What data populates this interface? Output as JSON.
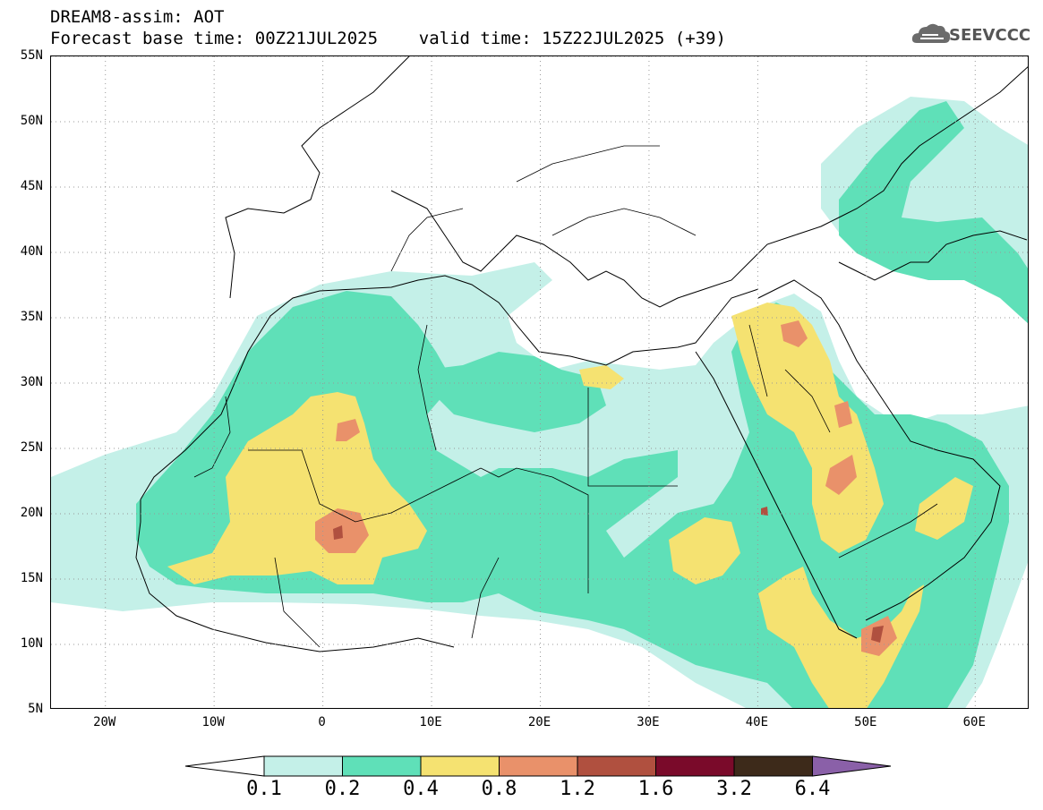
{
  "title": {
    "line1": "DREAM8-assim: AOT",
    "line2": "Forecast base time: 00Z21JUL2025    valid time: 15Z22JUL2025 (+39)"
  },
  "logo": {
    "text": "SEEVCCC",
    "icon": "cloud-logo-icon"
  },
  "map": {
    "lon_range": [
      -25,
      65
    ],
    "lat_range": [
      5,
      55
    ],
    "grid": "dotted",
    "lat_labels": [
      "55N",
      "50N",
      "45N",
      "40N",
      "35N",
      "30N",
      "25N",
      "20N",
      "15N",
      "10N",
      "5N"
    ],
    "lat_values": [
      55,
      50,
      45,
      40,
      35,
      30,
      25,
      20,
      15,
      10,
      5
    ],
    "lon_labels": [
      "20W",
      "10W",
      "0",
      "10E",
      "20E",
      "30E",
      "40E",
      "50E",
      "60E"
    ],
    "lon_values": [
      -20,
      -10,
      0,
      10,
      20,
      30,
      40,
      50,
      60
    ]
  },
  "colorbar": {
    "labels": [
      "0.1",
      "0.2",
      "0.4",
      "0.8",
      "1.2",
      "1.6",
      "3.2",
      "6.4"
    ],
    "colors": [
      "#c4f0e8",
      "#5fe0b8",
      "#f5e271",
      "#e9916a",
      "#b0503f",
      "#7a0a2a",
      "#3d2a1a"
    ],
    "under_color": "#ffffff",
    "over_color": "#8a60a8"
  },
  "colors": {
    "c1": "#c4f0e8",
    "c2": "#5fe0b8",
    "c3": "#f5e271",
    "c4": "#e9916a",
    "c5": "#b0503f"
  }
}
